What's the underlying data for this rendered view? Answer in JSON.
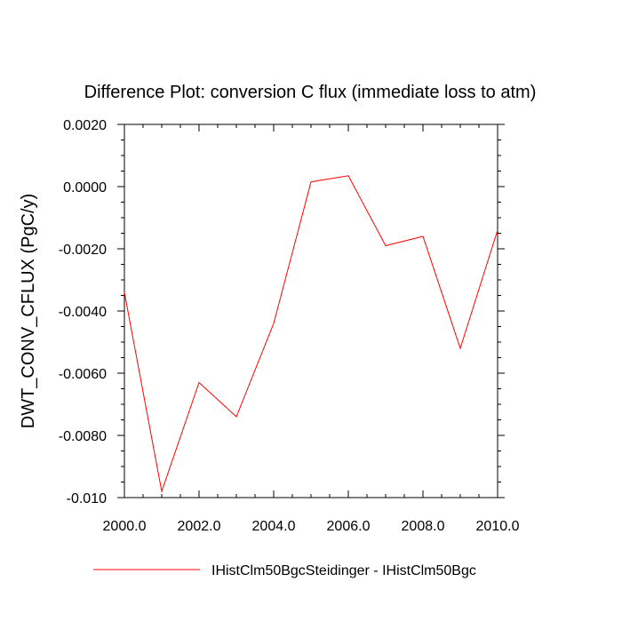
{
  "chart_data": {
    "type": "line",
    "title": "Difference Plot: conversion C flux (immediate loss to atm)",
    "xlabel": "",
    "ylabel": "DWT_CONV_CFLUX  (PgC/y)",
    "xlim": [
      2000.0,
      2010.0
    ],
    "ylim": [
      -0.01,
      0.002
    ],
    "x_ticks": [
      2000.0,
      2002.0,
      2004.0,
      2006.0,
      2008.0,
      2010.0
    ],
    "x_tick_labels": [
      "2000.0",
      "2002.0",
      "2004.0",
      "2006.0",
      "2008.0",
      "2010.0"
    ],
    "y_ticks": [
      0.002,
      0.0,
      -0.002,
      -0.004,
      -0.006,
      -0.008,
      -0.01
    ],
    "y_tick_labels": [
      "0.0020",
      "0.0000",
      "-0.0020",
      "-0.0040",
      "-0.0060",
      "-0.0080",
      "-0.010"
    ],
    "grid": false,
    "legend_position": "bottom",
    "series": [
      {
        "name": "IHistClm50BgcSteidinger - IHistClm50Bgc",
        "color": "#ff0000",
        "x": [
          2000,
          2001,
          2002,
          2003,
          2004,
          2005,
          2006,
          2007,
          2008,
          2009,
          2010
        ],
        "y": [
          -0.0034,
          -0.0098,
          -0.0063,
          -0.0074,
          -0.0044,
          0.00015,
          0.00035,
          -0.0019,
          -0.0016,
          -0.0052,
          -0.0014
        ]
      }
    ]
  }
}
